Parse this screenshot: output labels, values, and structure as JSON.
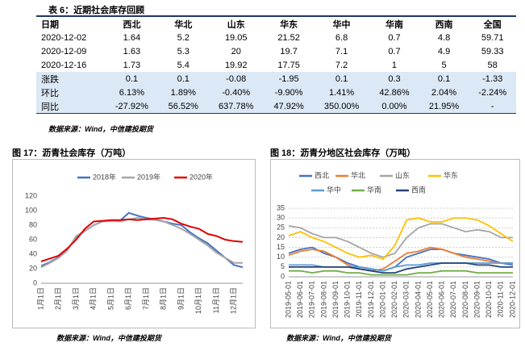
{
  "table_title": "表 6：近期社会库存回顾",
  "table_source": "数据来源：Wind，中信建投期货",
  "table": {
    "header": [
      "日期",
      "西北",
      "华北",
      "山东",
      "华东",
      "华中",
      "华南",
      "西南",
      "全国"
    ],
    "rows": [
      [
        "2020-12-02",
        "1.64",
        "5.2",
        "19.05",
        "21.52",
        "6.8",
        "0.7",
        "4.8",
        "59.71"
      ],
      [
        "2020-12-09",
        "1.63",
        "5.3",
        "20",
        "19.7",
        "7.1",
        "0.7",
        "4.9",
        "59.33"
      ],
      [
        "2020-12-16",
        "1.73",
        "5.4",
        "19.92",
        "17.75",
        "7.2",
        "1",
        "5",
        "58"
      ],
      [
        "涨跌",
        "0.1",
        "0.1",
        "-0.08",
        "-1.95",
        "0.1",
        "0.3",
        "0.1",
        "-1.33"
      ],
      [
        "环比",
        "6.13%",
        "1.89%",
        "-0.40%",
        "-9.90%",
        "1.41%",
        "42.86%",
        "2.04%",
        "-2.24%"
      ],
      [
        "同比",
        "-27.92%",
        "56.52%",
        "637.78%",
        "47.92%",
        "350.00%",
        "0.00%",
        "21.95%",
        "-"
      ]
    ]
  },
  "chart_data": [
    {
      "type": "line",
      "title": "图 17：沥青社会库存（万吨）",
      "source": "数据来源：Wind，中信建投期货",
      "categories": [
        "1月1日",
        null,
        "2月1日",
        null,
        "3月1日",
        null,
        "4月1日",
        null,
        "5月1日",
        null,
        "6月1日",
        null,
        "7月1日",
        null,
        "8月1日",
        null,
        "9月1日",
        null,
        "10月1日",
        null,
        "11月1日",
        null,
        "12月1日",
        null
      ],
      "ylim": [
        0,
        120
      ],
      "yticks": [
        0,
        20,
        40,
        60,
        80,
        100,
        120
      ],
      "grid": false,
      "series": [
        {
          "name": "2018年",
          "color": "#4472c4",
          "values": [
            24,
            29,
            36,
            46,
            64,
            72,
            80,
            85,
            86,
            86,
            97,
            93,
            90,
            88,
            85,
            82,
            80,
            70,
            62,
            55,
            45,
            35,
            25,
            22
          ]
        },
        {
          "name": "2019年",
          "color": "#a5a5a5",
          "values": [
            22,
            28,
            35,
            45,
            65,
            72,
            80,
            85,
            86,
            85,
            88,
            90,
            88,
            87,
            85,
            80,
            75,
            68,
            60,
            52,
            42,
            35,
            28,
            28
          ]
        },
        {
          "name": "2020年",
          "color": "#e00000",
          "values": [
            30,
            34,
            38,
            48,
            60,
            75,
            85,
            86,
            87,
            87,
            88,
            87,
            88,
            89,
            90,
            88,
            82,
            78,
            75,
            68,
            65,
            60,
            58,
            57
          ]
        }
      ]
    },
    {
      "type": "line",
      "title": "图 18：沥青分地区社会库存（万吨）",
      "source": "数据来源：Wind，中信建投期货",
      "categories": [
        "2019-05-01",
        "2019-06-01",
        "2019-07-01",
        "2019-08-01",
        "2019-09-01",
        "2019-10-01",
        "2019-11-01",
        "2019-12-01",
        "2020-01-01",
        "2020-02-01",
        "2020-03-01",
        "2020-04-01",
        "2020-05-01",
        "2020-06-01",
        "2020-07-01",
        "2020-08-01",
        "2020-09-01",
        "2020-10-01",
        "2020-11-01",
        "2020-12-01"
      ],
      "ylim": [
        0,
        35
      ],
      "yticks": [
        0,
        5,
        10,
        15,
        20,
        25,
        30,
        35
      ],
      "grid": true,
      "series": [
        {
          "name": "西北",
          "color": "#4472c4",
          "values": [
            12,
            14,
            15,
            12,
            10,
            7,
            5,
            4,
            3,
            5,
            10,
            12,
            14,
            14,
            12,
            11,
            10,
            9,
            7,
            6
          ]
        },
        {
          "name": "华北",
          "color": "#ed7d31",
          "values": [
            11,
            13,
            14,
            13,
            10,
            6,
            4,
            3,
            4,
            8,
            12,
            13,
            15,
            14,
            12,
            10,
            9,
            8,
            7,
            7
          ]
        },
        {
          "name": "山东",
          "color": "#a5a5a5",
          "values": [
            26,
            25,
            22,
            20,
            20,
            18,
            15,
            12,
            10,
            12,
            20,
            25,
            27,
            27,
            25,
            23,
            24,
            23,
            20,
            20
          ]
        },
        {
          "name": "华东",
          "color": "#ffc000",
          "values": [
            21,
            23,
            20,
            18,
            15,
            12,
            10,
            11,
            9,
            16,
            29,
            30,
            28,
            28,
            30,
            30,
            29,
            26,
            22,
            18
          ]
        },
        {
          "name": "华中",
          "color": "#5b9bd5",
          "values": [
            6,
            6,
            6,
            5,
            5,
            5,
            5,
            4,
            3,
            5,
            6,
            6,
            7,
            7,
            7,
            7,
            7,
            7,
            7,
            7
          ]
        },
        {
          "name": "华南",
          "color": "#70ad47",
          "values": [
            3,
            3,
            2,
            3,
            3,
            2,
            2,
            1,
            1,
            1,
            1,
            2,
            2,
            3,
            3,
            3,
            2,
            2,
            2,
            2
          ]
        },
        {
          "name": "西南",
          "color": "#264478",
          "values": [
            5,
            5,
            5,
            5,
            5,
            5,
            4,
            3,
            2,
            2,
            4,
            5,
            6,
            7,
            7,
            7,
            6,
            6,
            5,
            5
          ]
        }
      ]
    }
  ]
}
